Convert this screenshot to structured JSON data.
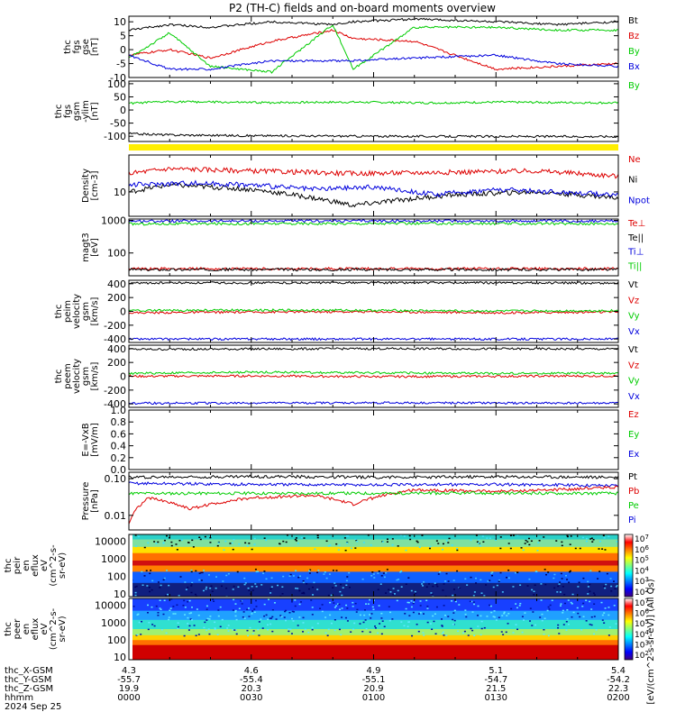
{
  "chart_data": {
    "type": "line",
    "title": "P2 (TH-C) fields and on-board moments overview",
    "panels": [
      {
        "id": "fgs-gse",
        "ylabel_lines": [
          "thc",
          "fgs",
          "gse",
          "[nT]"
        ],
        "yticks": [
          "10",
          "5",
          "0",
          "-5",
          "-10"
        ],
        "yrange": [
          -10,
          12
        ],
        "scale": "linear",
        "legend": [
          {
            "label": "Bt",
            "color": "#000000"
          },
          {
            "label": "Bz",
            "color": "#dd0000"
          },
          {
            "label": "By",
            "color": "#00cc00"
          },
          {
            "label": "Bx",
            "color": "#0000dd"
          }
        ],
        "series": [
          {
            "name": "Bt",
            "color": "#000000",
            "x": [
              0,
              10,
              20,
              35,
              50,
              55,
              70,
              90,
              105,
              120
            ],
            "y": [
              7,
              9,
              8,
              10,
              9,
              10,
              11,
              10,
              9,
              10
            ]
          },
          {
            "name": "Bz",
            "color": "#dd0000",
            "x": [
              0,
              10,
              20,
              35,
              50,
              55,
              70,
              90,
              105,
              120
            ],
            "y": [
              -2,
              0,
              -3,
              3,
              7,
              4,
              3,
              -7,
              -6,
              -5
            ]
          },
          {
            "name": "By",
            "color": "#00cc00",
            "x": [
              0,
              10,
              20,
              35,
              50,
              55,
              70,
              90,
              105,
              120
            ],
            "y": [
              -3,
              6,
              -6,
              -8,
              9,
              -7,
              8,
              8,
              7,
              7
            ]
          },
          {
            "name": "Bx",
            "color": "#0000dd",
            "x": [
              0,
              10,
              20,
              35,
              50,
              55,
              70,
              90,
              105,
              120
            ],
            "y": [
              -2,
              -7,
              -7,
              -4,
              -4,
              -4,
              -3,
              -2,
              -5,
              -6
            ]
          }
        ]
      },
      {
        "id": "fgs-gsm-ylim",
        "ylabel_lines": [
          "thc",
          "fgs",
          "gsm",
          "-ylim",
          "[nT]"
        ],
        "yticks": [
          "100",
          "50",
          "0",
          "-50",
          "-100"
        ],
        "yrange": [
          -120,
          110
        ],
        "scale": "linear",
        "legend": [
          {
            "label": "By",
            "color": "#00cc00"
          }
        ],
        "series": [
          {
            "name": "By",
            "color": "#00cc00",
            "x": [
              0,
              10,
              30,
              55,
              75,
              90,
              120
            ],
            "y": [
              25,
              32,
              28,
              30,
              27,
              30,
              27
            ]
          },
          {
            "name": "",
            "color": "#000000",
            "x": [
              0,
              10,
              30,
              60,
              90,
              120
            ],
            "y": [
              -90,
              -95,
              -98,
              -100,
              -101,
              -101
            ]
          }
        ]
      },
      {
        "id": "density",
        "ylabel_lines": [
          "Density",
          "[cm-3]"
        ],
        "yticks": [
          "10"
        ],
        "yrange": [
          4,
          40
        ],
        "scale": "log",
        "legend": [
          {
            "label": "Ne",
            "color": "#dd0000"
          },
          {
            "label": "Ni",
            "color": "#000000"
          },
          {
            "label": "Npot",
            "color": "#0000dd"
          }
        ],
        "series": [
          {
            "name": "Ne",
            "color": "#dd0000",
            "x": [
              0,
              10,
              30,
              55,
              80,
              100,
              120
            ],
            "y": [
              20,
              24,
              22,
              20,
              21,
              22,
              18
            ]
          },
          {
            "name": "Ni",
            "color": "#000000",
            "x": [
              0,
              10,
              30,
              55,
              80,
              100,
              120
            ],
            "y": [
              10,
              13,
              11,
              6,
              9,
              10,
              8
            ]
          },
          {
            "name": "Npot",
            "color": "#0000dd",
            "x": [
              0,
              15,
              30,
              45,
              60,
              75,
              90,
              105,
              120
            ],
            "y": [
              13,
              14,
              13,
              11,
              12,
              9,
              11,
              10,
              9
            ]
          }
        ]
      },
      {
        "id": "magt3",
        "ylabel_lines": [
          "magt3",
          "[eV]"
        ],
        "yticks": [
          "1000",
          "100"
        ],
        "yrange": [
          20,
          1100
        ],
        "scale": "log",
        "legend": [
          {
            "label": "Te⊥",
            "color": "#dd0000"
          },
          {
            "label": "Te||",
            "color": "#000000"
          },
          {
            "label": "Ti⊥",
            "color": "#0000dd"
          },
          {
            "label": "Ti||",
            "color": "#00cc00"
          }
        ],
        "series": [
          {
            "name": "Ti⊥",
            "color": "#0000dd",
            "x": [
              0,
              60,
              120
            ],
            "y": [
              950,
              960,
              950
            ]
          },
          {
            "name": "Ti||",
            "color": "#00cc00",
            "x": [
              0,
              60,
              120
            ],
            "y": [
              780,
              800,
              790
            ]
          },
          {
            "name": "Te⊥",
            "color": "#dd0000",
            "x": [
              0,
              60,
              120
            ],
            "y": [
              33,
              33,
              33
            ]
          },
          {
            "name": "Te||",
            "color": "#000000",
            "x": [
              0,
              60,
              120
            ],
            "y": [
              31,
              31,
              31
            ]
          }
        ]
      },
      {
        "id": "peim-velocity",
        "ylabel_lines": [
          "thc",
          "peim",
          "velocity",
          "gsm",
          "[km/s]"
        ],
        "yticks": [
          "400",
          "200",
          "0",
          "-200",
          "-400"
        ],
        "yrange": [
          -450,
          450
        ],
        "scale": "linear",
        "legend": [
          {
            "label": "Vt",
            "color": "#000000"
          },
          {
            "label": "Vz",
            "color": "#dd0000"
          },
          {
            "label": "Vy",
            "color": "#00cc00"
          },
          {
            "label": "Vx",
            "color": "#0000dd"
          }
        ],
        "series": [
          {
            "name": "Vt",
            "color": "#000000",
            "x": [
              0,
              60,
              120
            ],
            "y": [
              410,
              415,
              410
            ]
          },
          {
            "name": "Vz",
            "color": "#dd0000",
            "x": [
              0,
              30,
              60,
              90,
              120
            ],
            "y": [
              -20,
              -10,
              -5,
              -20,
              -10
            ]
          },
          {
            "name": "Vy",
            "color": "#00cc00",
            "x": [
              0,
              30,
              60,
              90,
              120
            ],
            "y": [
              10,
              20,
              15,
              5,
              10
            ]
          },
          {
            "name": "Vx",
            "color": "#0000dd",
            "x": [
              0,
              60,
              120
            ],
            "y": [
              -400,
              -400,
              -400
            ]
          }
        ]
      },
      {
        "id": "peem-velocity",
        "ylabel_lines": [
          "thc",
          "peem",
          "velocity",
          "gsm",
          "[km/s]"
        ],
        "yticks": [
          "400",
          "200",
          "0",
          "-200",
          "-400"
        ],
        "yrange": [
          -450,
          450
        ],
        "scale": "linear",
        "legend": [
          {
            "label": "Vt",
            "color": "#000000"
          },
          {
            "label": "Vz",
            "color": "#dd0000"
          },
          {
            "label": "Vy",
            "color": "#00cc00"
          },
          {
            "label": "Vx",
            "color": "#0000dd"
          }
        ],
        "series": [
          {
            "name": "Vt",
            "color": "#000000",
            "x": [
              0,
              60,
              120
            ],
            "y": [
              390,
              400,
              395
            ]
          },
          {
            "name": "Vz",
            "color": "#dd0000",
            "x": [
              0,
              30,
              60,
              90,
              120
            ],
            "y": [
              0,
              5,
              -5,
              0,
              5
            ]
          },
          {
            "name": "Vy",
            "color": "#00cc00",
            "x": [
              0,
              30,
              60,
              90,
              120
            ],
            "y": [
              40,
              60,
              50,
              40,
              45
            ]
          },
          {
            "name": "Vx",
            "color": "#0000dd",
            "x": [
              0,
              60,
              120
            ],
            "y": [
              -390,
              -385,
              -390
            ]
          }
        ]
      },
      {
        "id": "e-field",
        "ylabel_lines": [
          "E=-VxB",
          "[mV/m]"
        ],
        "yticks": [
          "1.0",
          "0.8",
          "0.6",
          "0.4",
          "0.2",
          "0.0"
        ],
        "yrange": [
          0,
          1
        ],
        "scale": "linear",
        "legend": [
          {
            "label": "Ez",
            "color": "#dd0000"
          },
          {
            "label": "Ey",
            "color": "#00cc00"
          },
          {
            "label": "Ex",
            "color": "#0000dd"
          }
        ],
        "series": []
      },
      {
        "id": "pressure",
        "ylabel_lines": [
          "Pressure",
          "[nPa]"
        ],
        "yticks": [
          "0.10",
          "0.01"
        ],
        "yrange": [
          0.004,
          0.15
        ],
        "scale": "log",
        "legend": [
          {
            "label": "Pt",
            "color": "#000000"
          },
          {
            "label": "Pb",
            "color": "#dd0000"
          },
          {
            "label": "Pe",
            "color": "#00cc00"
          },
          {
            "label": "Pi",
            "color": "#0000dd"
          }
        ],
        "series": [
          {
            "name": "Pt",
            "color": "#000000",
            "x": [
              0,
              30,
              60,
              90,
              120
            ],
            "y": [
              0.11,
              0.115,
              0.11,
              0.112,
              0.11
            ]
          },
          {
            "name": "Pi",
            "color": "#0000dd",
            "x": [
              0,
              30,
              60,
              90,
              120
            ],
            "y": [
              0.075,
              0.07,
              0.068,
              0.07,
              0.065
            ]
          },
          {
            "name": "Pb",
            "color": "#dd0000",
            "x": [
              0,
              5,
              15,
              30,
              45,
              55,
              70,
              90,
              105,
              120
            ],
            "y": [
              0.006,
              0.03,
              0.015,
              0.03,
              0.035,
              0.02,
              0.05,
              0.045,
              0.05,
              0.06
            ]
          },
          {
            "name": "Pe",
            "color": "#00cc00",
            "x": [
              0,
              60,
              120
            ],
            "y": [
              0.04,
              0.04,
              0.04
            ]
          }
        ]
      },
      {
        "id": "peir-en-eflux",
        "kind": "spectrogram",
        "ylabel_lines": [
          "thc",
          "peir",
          "en",
          "eflux",
          "eV",
          "(cm^2-s-",
          "sr-eV)"
        ],
        "yticks": [
          "10000",
          "1000",
          "100",
          "10"
        ],
        "yrange": [
          7,
          25000
        ],
        "scale": "log"
      },
      {
        "id": "peer-en-eflux",
        "kind": "spectrogram",
        "ylabel_lines": [
          "thc",
          "peer",
          "en",
          "eflux",
          "eV",
          "(cm^2-s-",
          "sr-eV)"
        ],
        "yticks": [
          "10000",
          "1000",
          "100",
          "10"
        ],
        "yrange": [
          7,
          25000
        ],
        "scale": "log"
      }
    ],
    "colorbars": [
      {
        "labels": [
          "10^7",
          "10^6",
          "10^5",
          "10^4",
          "10^3",
          "10^2"
        ]
      },
      {
        "labels": [
          "10^7",
          "10^6",
          "10^5",
          "10^4",
          "10^3",
          "10^2"
        ]
      }
    ],
    "colorbar_title": "[eV/(cm^2-s-sr-eV)] (All Qs)",
    "xaxis": {
      "row_labels": [
        "thc_X-GSM",
        "thc_Y-GSM",
        "thc_Z-GSM",
        "hhmm",
        "2024 Sep 25"
      ],
      "tick_minutes": [
        0,
        30,
        60,
        90,
        120
      ],
      "rows": [
        [
          "4.3",
          "4.6",
          "4.9",
          "5.1",
          "5.4"
        ],
        [
          "-55.7",
          "-55.4",
          "-55.1",
          "-54.7",
          "-54.2"
        ],
        [
          "19.9",
          "20.3",
          "20.9",
          "21.5",
          "22.3"
        ],
        [
          "0000",
          "0030",
          "0100",
          "0130",
          "0200"
        ]
      ]
    }
  }
}
